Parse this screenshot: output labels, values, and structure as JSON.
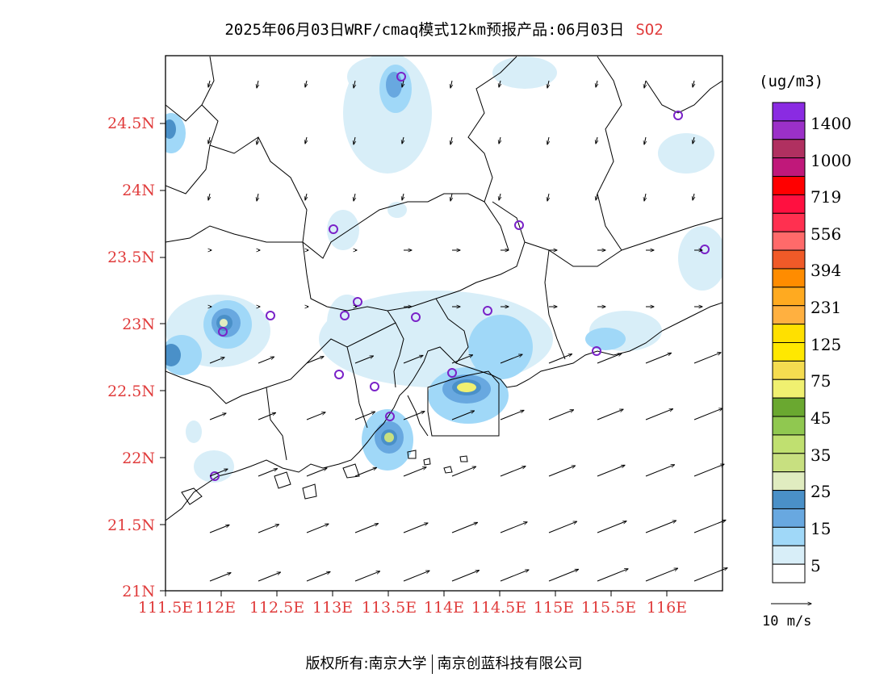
{
  "title": {
    "main": "2025年06月03日WRF/cmaq模式12km预报产品:06月03日",
    "species": "SO2"
  },
  "map": {
    "lat_labels": [
      "24.5N",
      "24N",
      "23.5N",
      "23N",
      "22.5N",
      "22N",
      "21.5N",
      "21N"
    ],
    "lon_labels": [
      "111.5E",
      "112E",
      "112.5E",
      "113E",
      "113.5E",
      "114E",
      "114.5E",
      "115E",
      "115.5E",
      "116E"
    ],
    "lat_values": [
      24.5,
      24.0,
      23.5,
      23.0,
      22.5,
      22.0,
      21.5,
      21.0
    ],
    "lon_values": [
      111.5,
      112.0,
      112.5,
      113.0,
      113.5,
      114.0,
      114.5,
      115.0,
      115.5,
      116.0
    ],
    "colors": {
      "label": "#e03c3c",
      "station": "#7a22c8",
      "border": "#000000"
    }
  },
  "colorbar": {
    "unit": "(ug/m3)",
    "labels": [
      "1400",
      "1000",
      "719",
      "556",
      "394",
      "231",
      "125",
      "75",
      "45",
      "35",
      "25",
      "15",
      "5"
    ],
    "colors_top_to_bottom": [
      "#8a2be2",
      "#9b30c8",
      "#b03060",
      "#c0187a",
      "#ff0000",
      "#ff1040",
      "#ff3050",
      "#ff6a6a",
      "#f05a28",
      "#ff8c00",
      "#ffaa20",
      "#ffb040",
      "#ffe000",
      "#ffe800",
      "#f5dc50",
      "#f0f070",
      "#6aa830",
      "#90c850",
      "#c0e070",
      "#c8e080",
      "#e0ecc0",
      "#4a90c8",
      "#68a8e0",
      "#a0d8f8",
      "#d8eef8",
      "#ffffff"
    ]
  },
  "wind_reference": {
    "label": "10 m/s"
  },
  "footer": {
    "left": "版权所有:南京大学",
    "right": "南京创蓝科技有限公司"
  }
}
